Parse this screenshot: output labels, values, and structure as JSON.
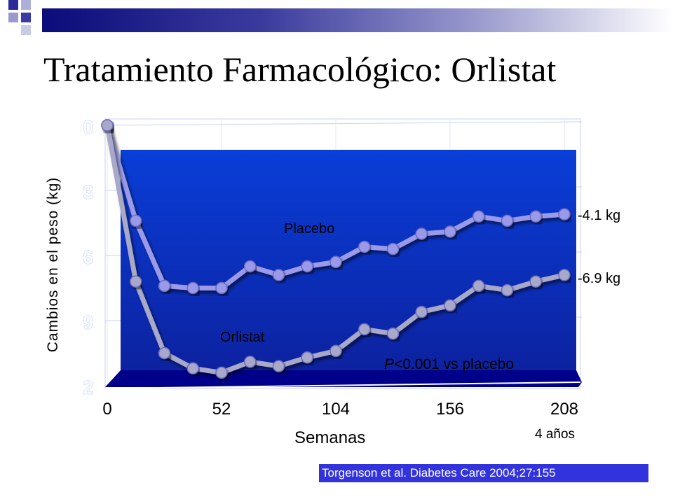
{
  "slide": {
    "title": "Tratamiento Farmacológico: Orlistat",
    "citation": "Torgenson et al. Diabetes Care 2004;27:155"
  },
  "chart_data": {
    "type": "line",
    "title": "",
    "xlabel": "Semanas",
    "ylabel": "Cambios en el peso (kg)",
    "x_tick_labels": [
      "0",
      "52",
      "104",
      "156",
      "208"
    ],
    "x_extra_label": "4 años",
    "xlim": [
      0,
      208
    ],
    "ylim": [
      -12,
      0
    ],
    "y_ticks": [
      0,
      -3,
      -6,
      -9,
      -12
    ],
    "x": [
      0,
      13,
      26,
      39,
      52,
      65,
      78,
      91,
      104,
      117,
      130,
      143,
      156,
      169,
      182,
      195,
      208
    ],
    "series": [
      {
        "name": "Placebo",
        "color": "#9a9ae8",
        "end_label": "-4.1 kg",
        "values": [
          0,
          -4.4,
          -7.4,
          -7.5,
          -7.5,
          -6.5,
          -6.9,
          -6.5,
          -6.3,
          -5.6,
          -5.7,
          -5.0,
          -4.9,
          -4.2,
          -4.4,
          -4.2,
          -4.1
        ]
      },
      {
        "name": "Orlistat",
        "color": "#a8a8c8",
        "end_label": "-6.9 kg",
        "values": [
          0,
          -7.2,
          -10.5,
          -11.2,
          -11.4,
          -10.9,
          -11.1,
          -10.7,
          -10.4,
          -9.4,
          -9.6,
          -8.6,
          -8.3,
          -7.4,
          -7.6,
          -7.2,
          -6.9
        ]
      }
    ],
    "annotations": [
      {
        "text": "P<0.001 vs placebo",
        "italic_prefix": "P"
      }
    ],
    "colors": {
      "plot_background_top": "#0a3ed8",
      "plot_background_bottom": "#0c22a0",
      "floor": "#00008a"
    },
    "grid": true
  }
}
